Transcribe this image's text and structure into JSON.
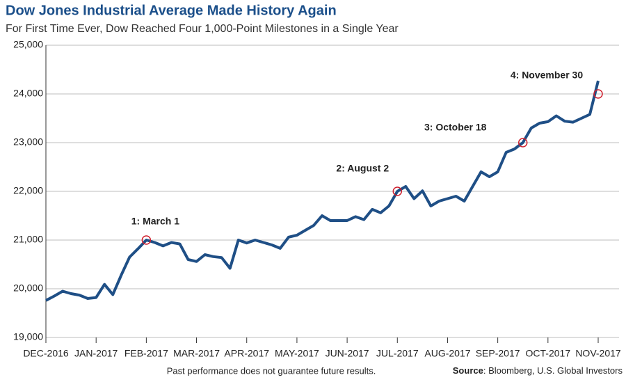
{
  "chart_data": {
    "type": "line",
    "title": "Dow Jones Industrial Average Made History Again",
    "subtitle": "For First Time Ever, Dow Reached Four 1,000-Point Milestones in a Single Year",
    "categories": [
      "DEC-2016",
      null,
      null,
      null,
      null,
      null,
      "JAN-2017",
      null,
      null,
      null,
      null,
      null,
      "FEB-2017",
      null,
      null,
      null,
      null,
      null,
      "MAR-2017",
      null,
      null,
      null,
      null,
      null,
      "APR-2017",
      null,
      null,
      null,
      null,
      null,
      "MAY-2017",
      null,
      null,
      null,
      null,
      null,
      "JUN-2017",
      null,
      null,
      null,
      null,
      null,
      "JUL-2017",
      null,
      null,
      null,
      null,
      null,
      "AUG-2017",
      null,
      null,
      null,
      null,
      null,
      "SEP-2017",
      null,
      null,
      null,
      null,
      null,
      "OCT-2017",
      null,
      null,
      null,
      null,
      null,
      "NOV-2017"
    ],
    "series": [
      {
        "color": "#1f4f86",
        "values": [
          19760,
          19850,
          19950,
          19900,
          19870,
          19800,
          19820,
          20090,
          19880,
          20280,
          20650,
          20820,
          21000,
          20950,
          20880,
          20950,
          20920,
          20600,
          20560,
          20700,
          20660,
          20640,
          20420,
          21000,
          20940,
          21000,
          20950,
          20900,
          20830,
          21060,
          21100,
          21200,
          21300,
          21500,
          21400,
          21400,
          21400,
          21480,
          21420,
          21630,
          21560,
          21700,
          22000,
          22100,
          21850,
          22010,
          21700,
          21800,
          21850,
          21900,
          21800,
          22100,
          22400,
          22300,
          22400,
          22800,
          22870,
          23000,
          23300,
          23400,
          23430,
          23550,
          23440,
          23420,
          23500,
          23580,
          24270
        ]
      }
    ],
    "annotations": [
      {
        "text": "1: March 1",
        "x": 12,
        "y": 21000
      },
      {
        "text": "2: August 2",
        "x": 42,
        "y": 22000
      },
      {
        "text": "3: October 18",
        "x": 57,
        "y": 23000
      },
      {
        "text": "4: November 30",
        "x": 66,
        "y": 24000
      }
    ],
    "marker_color": "#d0202e",
    "ylim": [
      19000,
      25000
    ],
    "yticks": [
      {
        "value": 19000,
        "label": "19,000"
      },
      {
        "value": 20000,
        "label": "20,000"
      },
      {
        "value": 21000,
        "label": "21,000"
      },
      {
        "value": 22000,
        "label": "22,000"
      },
      {
        "value": 23000,
        "label": "23,000"
      },
      {
        "value": 24000,
        "label": "24,000"
      },
      {
        "value": 25000,
        "label": "25,000"
      }
    ],
    "grid": true,
    "footnote": "Past performance does not guarantee future results.",
    "source_label": "Source",
    "source": ": Bloomberg, U.S. Global Investors"
  }
}
